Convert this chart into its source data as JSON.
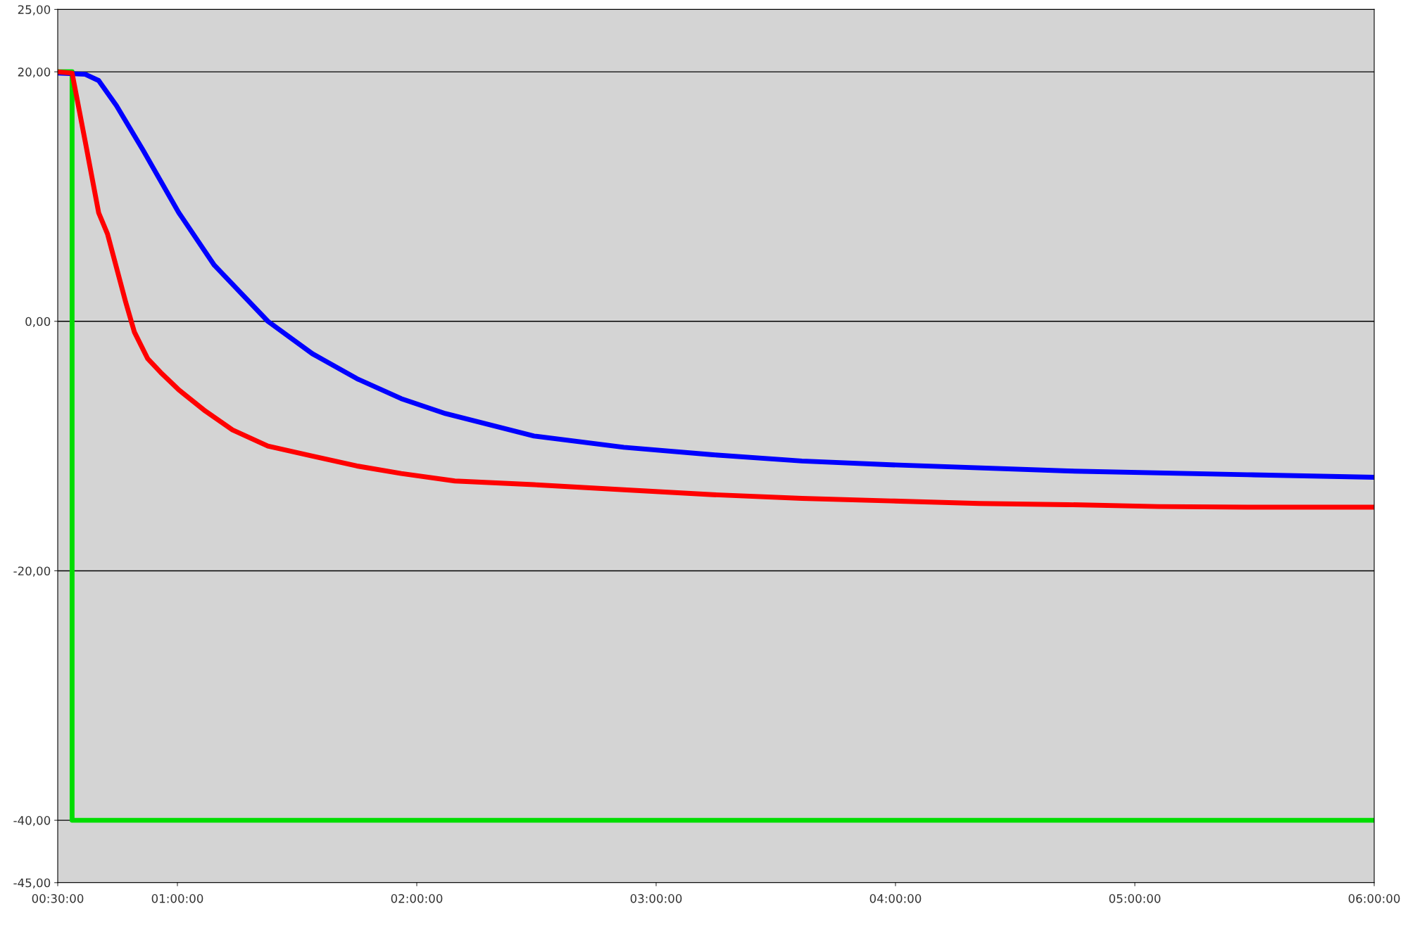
{
  "chart_data": {
    "type": "line",
    "xlim": [
      0.5,
      6.0
    ],
    "xticks": [
      {
        "value": 0.5,
        "label": "00:30:00"
      },
      {
        "value": 1.0,
        "label": "01:00:00"
      },
      {
        "value": 2.0,
        "label": "02:00:00"
      },
      {
        "value": 3.0,
        "label": "03:00:00"
      },
      {
        "value": 4.0,
        "label": "04:00:00"
      },
      {
        "value": 5.0,
        "label": "05:00:00"
      },
      {
        "value": 6.0,
        "label": "06:00:00"
      }
    ],
    "ylim": [
      -45,
      25
    ],
    "yticks": [
      {
        "value": 25,
        "label": "25,00"
      },
      {
        "value": 20,
        "label": "20,00"
      },
      {
        "value": 0,
        "label": "0,00"
      },
      {
        "value": -20,
        "label": "-20,00"
      },
      {
        "value": -40,
        "label": "-40,00"
      },
      {
        "value": -45,
        "label": "-45,00"
      }
    ],
    "grid": "y",
    "marker": "none",
    "line_style": "solid",
    "series": [
      {
        "color": "#00dd00",
        "x": [
          0.5,
          0.56,
          0.56,
          6.0
        ],
        "values": [
          20,
          20,
          -40,
          -40
        ]
      },
      {
        "color": "#0000ff",
        "x": [
          0.5,
          0.615,
          0.671,
          0.745,
          0.857,
          1.006,
          1.154,
          1.378,
          1.564,
          1.75,
          1.935,
          2.12,
          2.49,
          2.865,
          3.237,
          3.609,
          3.98,
          4.72,
          5.47,
          6.0
        ],
        "values": [
          19.9,
          19.8,
          19.3,
          17.3,
          13.7,
          8.7,
          4.5,
          0,
          -2.6,
          -4.6,
          -6.2,
          -7.4,
          -9.2,
          -10.1,
          -10.7,
          -11.2,
          -11.5,
          -12.0,
          -12.3,
          -12.5
        ]
      },
      {
        "color": "#ff0000",
        "x": [
          0.5,
          0.56,
          0.615,
          0.671,
          0.708,
          0.783,
          0.82,
          0.876,
          0.93,
          1.006,
          1.117,
          1.23,
          1.378,
          1.564,
          1.75,
          1.935,
          2.159,
          2.49,
          2.865,
          3.237,
          3.609,
          3.98,
          4.35,
          4.72,
          5.1,
          5.47,
          6.0
        ],
        "values": [
          20,
          19.9,
          14.4,
          8.7,
          7.0,
          1.6,
          -0.85,
          -3.0,
          -4.1,
          -5.5,
          -7.2,
          -8.7,
          -10.0,
          -10.8,
          -11.6,
          -12.2,
          -12.8,
          -13.1,
          -13.5,
          -13.9,
          -14.2,
          -14.4,
          -14.6,
          -14.7,
          -14.85,
          -14.9,
          -14.9
        ]
      }
    ]
  }
}
